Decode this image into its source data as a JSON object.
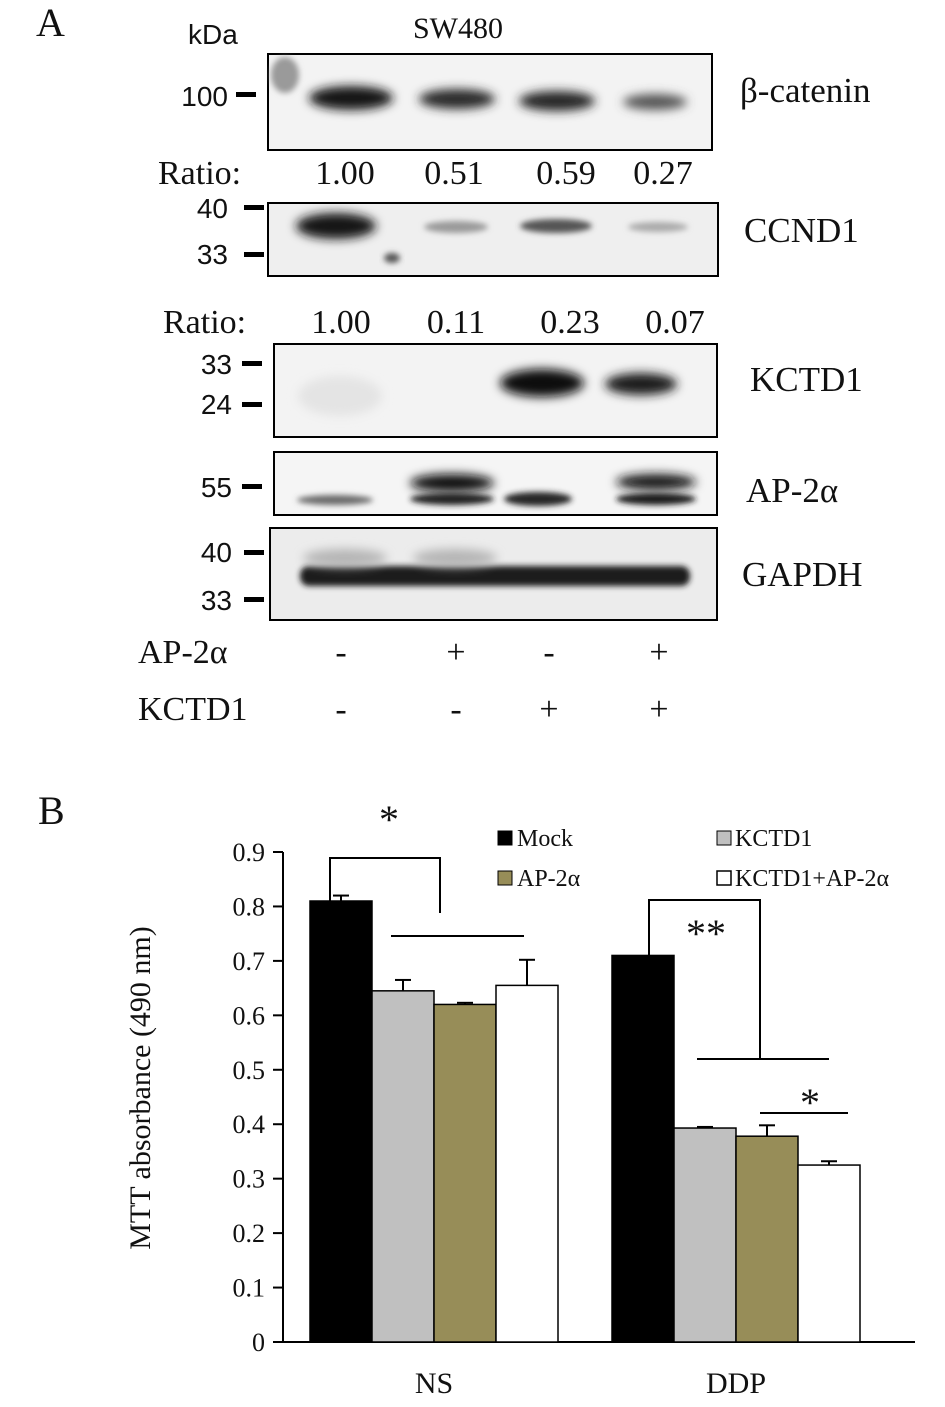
{
  "panel_a": {
    "panel_label": "A",
    "kda_label": "kDa",
    "cell_line": "SW480",
    "ratio_label": "Ratio:",
    "blots": [
      {
        "name": "β-catenin",
        "markers": [
          "100"
        ],
        "ratios": [
          "1.00",
          "0.51",
          "0.59",
          "0.27"
        ]
      },
      {
        "name": "CCND1",
        "markers": [
          "40",
          "33"
        ],
        "ratios": [
          "1.00",
          "0.11",
          "0.23",
          "0.07"
        ]
      },
      {
        "name": "KCTD1",
        "markers": [
          "33",
          "24"
        ]
      },
      {
        "name": "AP-2α",
        "markers": [
          "55"
        ]
      },
      {
        "name": "GAPDH",
        "markers": [
          "40",
          "33"
        ]
      }
    ],
    "conditions": [
      {
        "label": "AP-2α",
        "signs": [
          "-",
          "+",
          "-",
          "+"
        ]
      },
      {
        "label": "KCTD1",
        "signs": [
          "-",
          "-",
          "+",
          "+"
        ]
      }
    ]
  },
  "chart_data": {
    "type": "bar",
    "panel_label": "B",
    "categories": [
      "NS",
      "DDP"
    ],
    "ylabel": "MTT absorbance (490 nm)",
    "ylim": [
      0,
      0.9
    ],
    "yticks": [
      "0",
      "0.1",
      "0.2",
      "0.3",
      "0.4",
      "0.5",
      "0.6",
      "0.7",
      "0.8",
      "0.9"
    ],
    "series": [
      {
        "name": "Mock",
        "color": "#000000",
        "values": [
          0.81,
          0.71
        ],
        "errors": [
          0.01,
          0.0
        ]
      },
      {
        "name": "KCTD1",
        "color": "#c0c0c0",
        "values": [
          0.645,
          0.393
        ],
        "errors": [
          0.02,
          0.002
        ]
      },
      {
        "name": "AP-2α",
        "color": "#978d58",
        "values": [
          0.62,
          0.378
        ],
        "errors": [
          0.003,
          0.02
        ]
      },
      {
        "name": "KCTD1+AP-2α",
        "color": "#ffffff",
        "values": [
          0.655,
          0.325
        ],
        "errors": [
          0.047,
          0.007
        ]
      }
    ],
    "legend": {
      "placement": "top-right",
      "order": [
        "Mock",
        "AP-2α",
        "KCTD1",
        "KCTD1+AP-2α"
      ]
    },
    "significance": [
      {
        "label": "*",
        "group": "NS",
        "span": "Mock vs other groups"
      },
      {
        "label": "**",
        "group": "DDP",
        "span": "Mock vs other groups"
      },
      {
        "label": "*",
        "group": "DDP",
        "span": "AP-2α vs KCTD1+AP-2α"
      }
    ]
  }
}
